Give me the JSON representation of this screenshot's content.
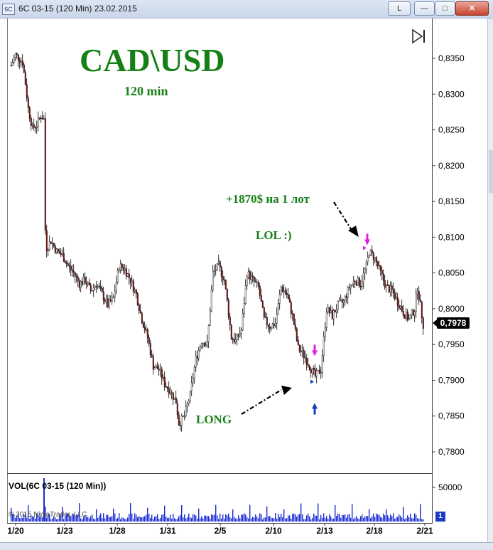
{
  "window": {
    "title": "6C 03-15 (120 Min)  23.02.2015",
    "app_icon": "chart-app-icon",
    "buttons": {
      "link": "L",
      "minimize": "—",
      "maximize": "□",
      "close": "✕"
    }
  },
  "overlay": {
    "title": "CAD\\USD",
    "subtitle": "120 min",
    "profit_note": "+1870$ на 1 лот",
    "lol_note": "LOL :)",
    "long_note": "LONG"
  },
  "colors": {
    "annotation": "#168016",
    "volume": "#1a2bd4",
    "up_candle": "#ffffff",
    "down_candle": "#000000",
    "down_body_fill": "#8b1a1a",
    "exit_marker": "#e020e0",
    "entry_marker": "#1a3bc4"
  },
  "volume_panel": {
    "label": "VOL(6C 03-15 (120 Min))",
    "axis_label": "50000",
    "badge": "1"
  },
  "copyright": "© 2015 NinjaTrader, LLC",
  "last_price": "0,7978",
  "chart_data": {
    "type": "candlestick",
    "instrument": "6C 03-15",
    "interval": "120 Min",
    "y_ticks": [
      "0,8350",
      "0,8300",
      "0,8250",
      "0,8200",
      "0,8150",
      "0,8100",
      "0,8050",
      "0,8000",
      "0,7950",
      "0,7900",
      "0,7850",
      "0,7800"
    ],
    "ylim": [
      0.777,
      0.84
    ],
    "x_ticks": [
      "1/20",
      "1/23",
      "1/28",
      "1/31",
      "2/5",
      "2/10",
      "2/13",
      "2/18",
      "2/21"
    ],
    "price_path": [
      [
        0,
        0.834
      ],
      [
        3,
        0.8355
      ],
      [
        8,
        0.8345
      ],
      [
        10,
        0.8315
      ],
      [
        12,
        0.828
      ],
      [
        15,
        0.8252
      ],
      [
        18,
        0.8258
      ],
      [
        21,
        0.827
      ],
      [
        23,
        0.8265
      ],
      [
        24,
        0.811
      ],
      [
        25,
        0.8085
      ],
      [
        28,
        0.8095
      ],
      [
        32,
        0.808
      ],
      [
        36,
        0.8075
      ],
      [
        40,
        0.806
      ],
      [
        44,
        0.805
      ],
      [
        48,
        0.8035
      ],
      [
        52,
        0.804
      ],
      [
        56,
        0.8025
      ],
      [
        60,
        0.8035
      ],
      [
        64,
        0.802
      ],
      [
        68,
        0.8005
      ],
      [
        72,
        0.8015
      ],
      [
        76,
        0.806
      ],
      [
        80,
        0.8055
      ],
      [
        84,
        0.804
      ],
      [
        88,
        0.802
      ],
      [
        92,
        0.7985
      ],
      [
        96,
        0.796
      ],
      [
        100,
        0.792
      ],
      [
        104,
        0.7915
      ],
      [
        108,
        0.7895
      ],
      [
        112,
        0.7885
      ],
      [
        116,
        0.787
      ],
      [
        118,
        0.784
      ],
      [
        122,
        0.785
      ],
      [
        126,
        0.788
      ],
      [
        130,
        0.793
      ],
      [
        134,
        0.7955
      ],
      [
        138,
        0.795
      ],
      [
        142,
        0.805
      ],
      [
        146,
        0.806
      ],
      [
        150,
        0.804
      ],
      [
        152,
        0.801
      ],
      [
        155,
        0.796
      ],
      [
        158,
        0.7955
      ],
      [
        162,
        0.797
      ],
      [
        166,
        0.805
      ],
      [
        170,
        0.804
      ],
      [
        174,
        0.803
      ],
      [
        178,
        0.7985
      ],
      [
        182,
        0.7975
      ],
      [
        186,
        0.798
      ],
      [
        190,
        0.803
      ],
      [
        194,
        0.802
      ],
      [
        198,
        0.799
      ],
      [
        202,
        0.7945
      ],
      [
        206,
        0.7935
      ],
      [
        210,
        0.792
      ],
      [
        214,
        0.7905
      ],
      [
        218,
        0.7915
      ],
      [
        222,
        0.8
      ],
      [
        226,
        0.799
      ],
      [
        230,
        0.8005
      ],
      [
        234,
        0.801
      ],
      [
        238,
        0.803
      ],
      [
        242,
        0.804
      ],
      [
        246,
        0.8035
      ],
      [
        250,
        0.806
      ],
      [
        252,
        0.808
      ],
      [
        256,
        0.807
      ],
      [
        260,
        0.805
      ],
      [
        264,
        0.803
      ],
      [
        268,
        0.8025
      ],
      [
        272,
        0.801
      ],
      [
        276,
        0.7995
      ],
      [
        280,
        0.7985
      ],
      [
        284,
        0.8
      ],
      [
        286,
        0.803
      ],
      [
        290,
        0.7978
      ]
    ],
    "trades": [
      {
        "type": "entry-long",
        "label": "LONG",
        "bar": 214,
        "price": 0.7898
      },
      {
        "type": "exit",
        "bar": 251,
        "price": 0.8085,
        "note": "+1870$ на 1 лот"
      }
    ],
    "volume_range": [
      0,
      60000
    ]
  }
}
